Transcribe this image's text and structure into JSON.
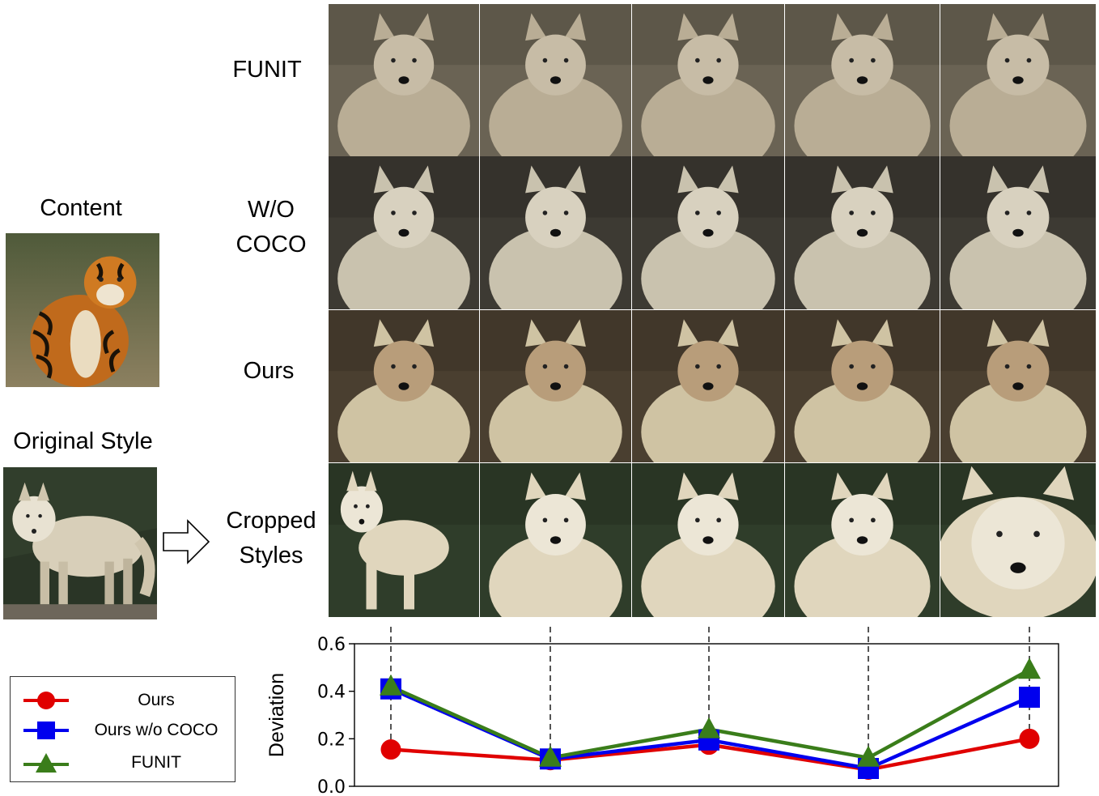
{
  "rows": {
    "funit": "FUNIT",
    "wo_coco_line1": "W/O",
    "wo_coco_line2": "COCO",
    "ours": "Ours",
    "cropped_line1": "Cropped",
    "cropped_line2": "Styles"
  },
  "left_panel": {
    "content_label": "Content",
    "original_style_label": "Original Style"
  },
  "legend": {
    "ours": "Ours",
    "ours_wo_coco": "Ours w/o COCO",
    "funit": "FUNIT"
  },
  "colors": {
    "ours": "#e00000",
    "ours_wo_coco": "#0000ee",
    "funit": "#3a7d1a",
    "connector": "#555555"
  },
  "chart_data": {
    "type": "line",
    "ylabel": "Deviation",
    "xlabel": "",
    "ylim": [
      0.0,
      0.6
    ],
    "yticks": [
      "0.0",
      "0.2",
      "0.4",
      "0.6"
    ],
    "x": [
      1,
      2,
      3,
      4,
      5
    ],
    "series": [
      {
        "name": "Ours",
        "marker": "circle",
        "color": "#e00000",
        "values": [
          0.155,
          0.11,
          0.175,
          0.07,
          0.2
        ]
      },
      {
        "name": "Ours w/o COCO",
        "marker": "square",
        "color": "#0000ee",
        "values": [
          0.41,
          0.115,
          0.195,
          0.075,
          0.375
        ]
      },
      {
        "name": "FUNIT",
        "marker": "triangle",
        "color": "#3a7d1a",
        "values": [
          0.42,
          0.12,
          0.24,
          0.12,
          0.49
        ]
      }
    ]
  }
}
